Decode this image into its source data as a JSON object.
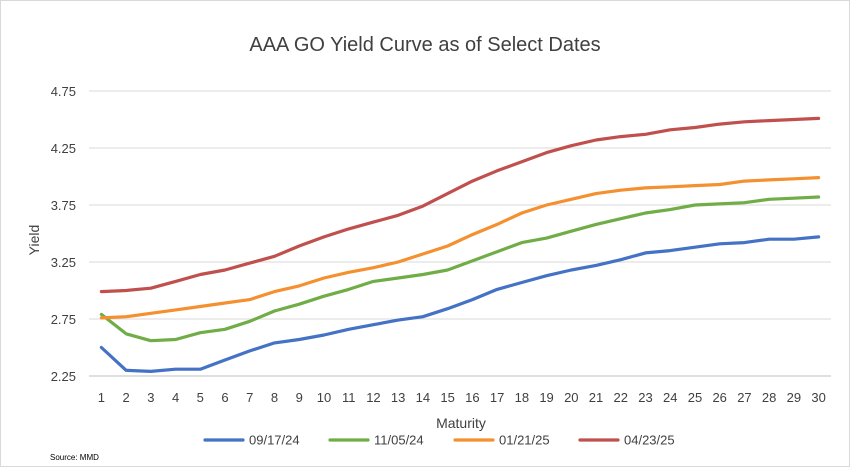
{
  "chart_data": {
    "type": "line",
    "title": "AAA GO Yield Curve as of Select Dates",
    "xlabel": "Maturity",
    "ylabel": "Yield",
    "source": "Source: MMD",
    "x": [
      1,
      2,
      3,
      4,
      5,
      6,
      7,
      8,
      9,
      10,
      11,
      12,
      13,
      14,
      15,
      16,
      17,
      18,
      19,
      20,
      21,
      22,
      23,
      24,
      25,
      26,
      27,
      28,
      29,
      30
    ],
    "ylim": [
      2.25,
      4.75
    ],
    "yticks": [
      "2.25",
      "2.75",
      "3.25",
      "3.75",
      "4.25",
      "4.75"
    ],
    "grid": true,
    "legend_position": "bottom",
    "series": [
      {
        "name": "09/17/24",
        "color": "#4472c4",
        "values": [
          2.5,
          2.3,
          2.29,
          2.31,
          2.31,
          2.39,
          2.47,
          2.54,
          2.57,
          2.61,
          2.66,
          2.7,
          2.74,
          2.77,
          2.84,
          2.92,
          3.01,
          3.07,
          3.13,
          3.18,
          3.22,
          3.27,
          3.33,
          3.35,
          3.38,
          3.41,
          3.42,
          3.45,
          3.45,
          3.47
        ]
      },
      {
        "name": "11/05/24",
        "color": "#70ad47",
        "values": [
          2.79,
          2.62,
          2.56,
          2.57,
          2.63,
          2.66,
          2.73,
          2.82,
          2.88,
          2.95,
          3.01,
          3.08,
          3.11,
          3.14,
          3.18,
          3.26,
          3.34,
          3.42,
          3.46,
          3.52,
          3.58,
          3.63,
          3.68,
          3.71,
          3.75,
          3.76,
          3.77,
          3.8,
          3.81,
          3.82
        ]
      },
      {
        "name": "01/21/25",
        "color": "#f4902f",
        "values": [
          2.76,
          2.77,
          2.8,
          2.83,
          2.86,
          2.89,
          2.92,
          2.99,
          3.04,
          3.11,
          3.16,
          3.2,
          3.25,
          3.32,
          3.39,
          3.49,
          3.58,
          3.68,
          3.75,
          3.8,
          3.85,
          3.88,
          3.9,
          3.91,
          3.92,
          3.93,
          3.96,
          3.97,
          3.98,
          3.99
        ]
      },
      {
        "name": "04/23/25",
        "color": "#c0504d",
        "values": [
          2.99,
          3.0,
          3.02,
          3.08,
          3.14,
          3.18,
          3.24,
          3.3,
          3.39,
          3.47,
          3.54,
          3.6,
          3.66,
          3.74,
          3.85,
          3.96,
          4.05,
          4.13,
          4.21,
          4.27,
          4.32,
          4.35,
          4.37,
          4.41,
          4.43,
          4.46,
          4.48,
          4.49,
          4.5,
          4.51
        ]
      }
    ]
  }
}
